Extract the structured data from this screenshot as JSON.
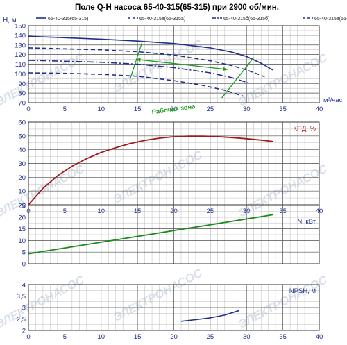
{
  "title": "Поле Q-H насоса 65-40-315(65-315) при 2900 об/мин.",
  "watermark": "ЭЛЕКТРОНАСОС",
  "colors": {
    "head_curves": "#1f2f8c",
    "efficiency": "#a01c1c",
    "power": "#1e8a1e",
    "npsh": "#1f2f8c",
    "working_zone": "#1e9e1e",
    "grid_major": "#555555",
    "grid_minor": "#bcbcbc",
    "tick_text": "#1f2f8c",
    "watermark": "#d6dde8"
  },
  "chart_data": [
    {
      "type": "line",
      "name": "qh",
      "xlabel": "м³/час",
      "ylabel": "H, м",
      "xlim": [
        0,
        40
      ],
      "ylim": [
        70,
        150
      ],
      "xticks": [
        0,
        5,
        10,
        15,
        20,
        25,
        30,
        35,
        40
      ],
      "yticks": [
        70,
        80,
        90,
        100,
        110,
        120,
        130,
        140,
        150
      ],
      "grid": true,
      "legend_position": "top",
      "series": [
        {
          "name": "65-40-315(65-315)",
          "dash": "solid",
          "x": [
            0,
            5,
            10,
            15,
            20,
            25,
            28,
            30,
            32,
            33.6
          ],
          "y": [
            139,
            137.5,
            136,
            134,
            131.5,
            127,
            122.5,
            118,
            111,
            104
          ]
        },
        {
          "name": "65-40-315а(65-315а)",
          "dash": "dash",
          "x": [
            0,
            5,
            10,
            15,
            20,
            25,
            28,
            30,
            32.5
          ],
          "y": [
            127,
            126,
            125,
            123,
            119.5,
            113.5,
            108.5,
            104,
            97
          ]
        },
        {
          "name": "65-40-315б(65-315б)",
          "dash": "dashdot",
          "x": [
            0,
            5,
            10,
            15,
            20,
            25,
            28,
            30.5
          ],
          "y": [
            114,
            113,
            112,
            110,
            106.5,
            101,
            96,
            90
          ]
        },
        {
          "name": "65-40-315в(65-315в)",
          "dash": "dash",
          "x": [
            0,
            5,
            10,
            15,
            20,
            24,
            27,
            29.5
          ],
          "y": [
            101,
            100.5,
            99.5,
            97.5,
            93,
            88,
            83,
            77
          ]
        }
      ],
      "annotations": [
        {
          "text": "Рабочая зона",
          "x": 20,
          "y": 90
        }
      ],
      "working_zone": {
        "left_boundary": {
          "x": [
            14,
            15.6
          ],
          "y": [
            95,
            132
          ]
        },
        "right_boundary": {
          "x": [
            26.6,
            31
          ],
          "y": [
            75,
            117
          ]
        },
        "arrow": {
          "x": [
            14.8,
            27.4
          ],
          "y": [
            115,
            104.5
          ]
        }
      }
    },
    {
      "type": "line",
      "name": "efficiency",
      "ylabel": "КПД, %",
      "xlim": [
        0,
        40
      ],
      "ylim": [
        0,
        60
      ],
      "xticks": [
        0,
        5,
        10,
        15,
        20,
        25,
        30,
        35,
        40
      ],
      "yticks": [
        0,
        10,
        20,
        30,
        40,
        50,
        60
      ],
      "grid": true,
      "series": [
        {
          "name": "КПД, %",
          "x": [
            0,
            2,
            4,
            6,
            8,
            10,
            12,
            14,
            16,
            18,
            20,
            22,
            24,
            26,
            28,
            30,
            32,
            33.6
          ],
          "y": [
            0,
            12,
            21,
            28,
            33.5,
            38,
            41.5,
            44.5,
            46.8,
            48.4,
            49.4,
            49.8,
            49.8,
            49.5,
            48.8,
            48,
            47,
            46
          ]
        }
      ]
    },
    {
      "type": "line",
      "name": "power",
      "ylabel": "N, кВт",
      "xlim": [
        0,
        40
      ],
      "ylim": [
        0,
        25
      ],
      "xticks": [
        0,
        5,
        10,
        15,
        20,
        25,
        30,
        35,
        40
      ],
      "yticks": [
        0,
        5,
        10,
        15,
        20,
        25
      ],
      "grid": true,
      "series": [
        {
          "name": "N, кВт",
          "x": [
            0,
            33.6
          ],
          "y": [
            4.3,
            21
          ]
        }
      ]
    },
    {
      "type": "line",
      "name": "npsh",
      "ylabel": "NPSH, м",
      "xlim": [
        0,
        40
      ],
      "ylim": [
        2,
        4
      ],
      "xticks": [
        0,
        5,
        10,
        15,
        20,
        25,
        30,
        35,
        40
      ],
      "yticks": [
        2,
        2.5,
        3,
        3.5,
        4
      ],
      "ytick_labels": [
        "2",
        "2,5",
        "3",
        "3,5",
        "4"
      ],
      "grid": true,
      "series": [
        {
          "name": "NPSH, м",
          "x": [
            21,
            23,
            25,
            27,
            29
          ],
          "y": [
            2.4,
            2.47,
            2.55,
            2.67,
            2.87
          ]
        }
      ]
    }
  ]
}
